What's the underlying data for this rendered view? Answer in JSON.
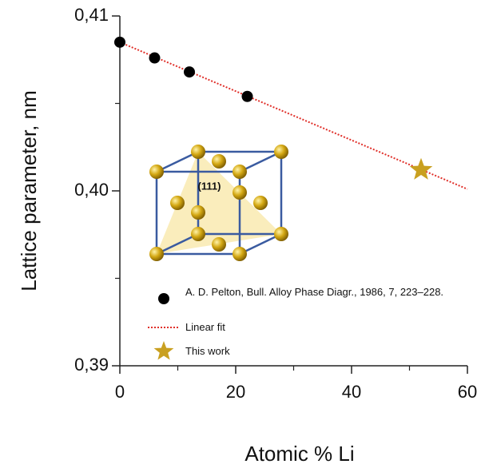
{
  "chart_data": {
    "type": "scatter",
    "xlabel": "Atomic % Li",
    "ylabel": "Lattice parameter, nm",
    "xlim": [
      0,
      60
    ],
    "xticks": [
      0,
      20,
      40,
      60
    ],
    "minor_xticks": [
      10,
      30,
      50
    ],
    "ylim": [
      0.39,
      0.41
    ],
    "yticks": [
      {
        "value": 0.39,
        "label": "0,39"
      },
      {
        "value": 0.4,
        "label": "0,40"
      },
      {
        "value": 0.41,
        "label": "0,41"
      }
    ],
    "minor_yticks": [
      0.395,
      0.405
    ],
    "series": [
      {
        "name": "A. D. Pelton, Bull. Alloy Phase Diagr., 1986, 7, 223–228.",
        "color": "#000000",
        "marker": "circle",
        "x": [
          0,
          6,
          12,
          22
        ],
        "values": [
          0.4085,
          0.4076,
          0.4068,
          0.4054
        ]
      },
      {
        "name": "Linear fit",
        "color": "#e0302a",
        "marker": "dotted-line",
        "x": [
          0,
          60
        ],
        "values": [
          0.4085,
          0.4001
        ]
      },
      {
        "name": "This work",
        "color": "#c9a020",
        "marker": "star",
        "x": [
          52
        ],
        "values": [
          0.4012
        ]
      }
    ],
    "inset": {
      "label": "(111)"
    }
  }
}
